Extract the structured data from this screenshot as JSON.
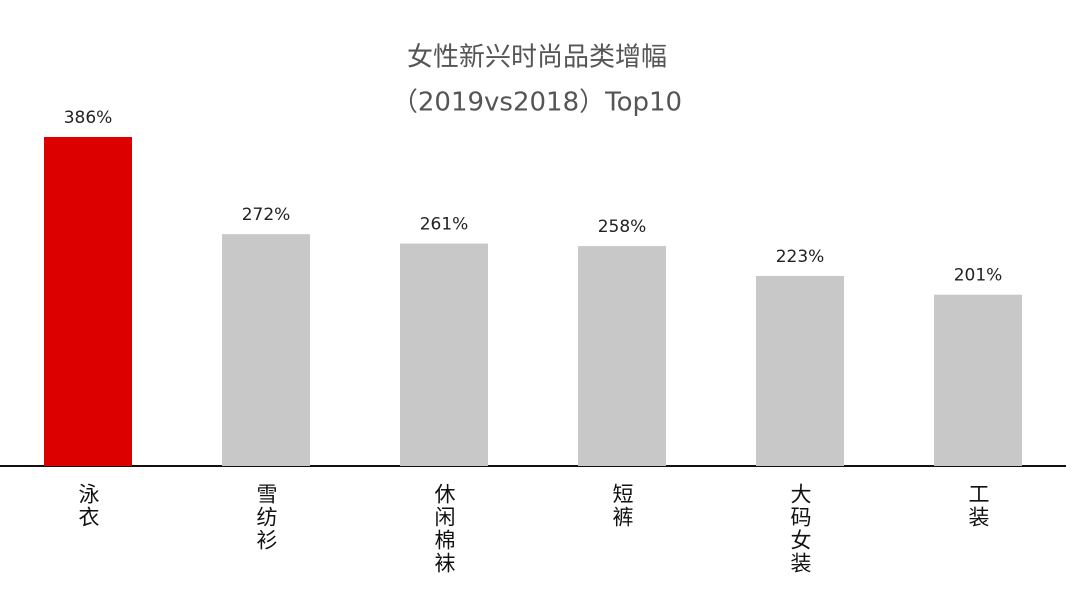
{
  "chart_data": {
    "type": "bar",
    "title": "女性新兴时尚品类增幅",
    "subtitle": "（2019vs2018）Top10",
    "categories": [
      "泳衣",
      "雪纺衫",
      "休闲棉袜",
      "短裤",
      "大码女装",
      "工装"
    ],
    "values": [
      386,
      272,
      261,
      258,
      223,
      201
    ],
    "value_labels": [
      "386%",
      "272%",
      "261%",
      "258%",
      "223%",
      "201%"
    ],
    "colors": [
      "#dd0000",
      "#c8c8c8",
      "#c8c8c8",
      "#c8c8c8",
      "#c8c8c8",
      "#c8c8c8"
    ]
  }
}
